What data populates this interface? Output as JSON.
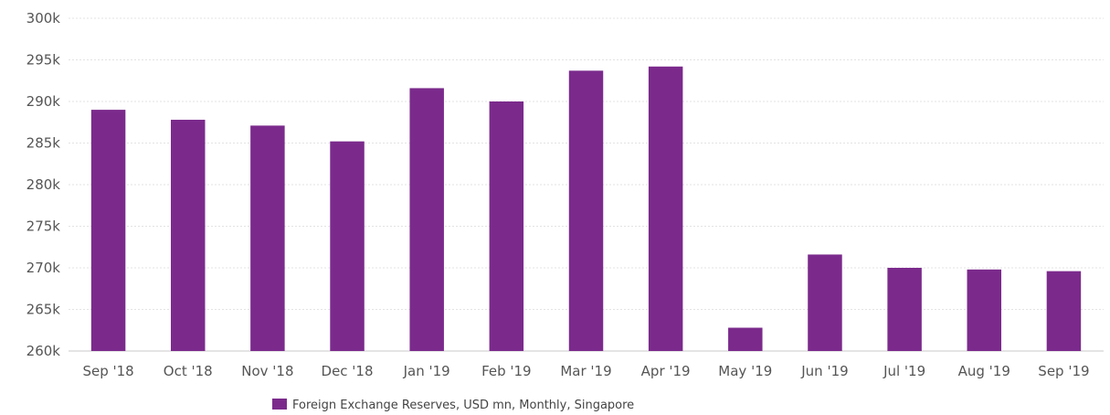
{
  "chart_data": {
    "type": "bar",
    "categories": [
      "Sep '18",
      "Oct '18",
      "Nov '18",
      "Dec '18",
      "Jan '19",
      "Feb '19",
      "Mar '19",
      "Apr '19",
      "May '19",
      "Jun '19",
      "Jul '19",
      "Aug '19",
      "Sep '19"
    ],
    "series": [
      {
        "name": "Foreign Exchange Reserves, USD mn, Monthly, Singapore",
        "values": [
          289000,
          287800,
          287100,
          285200,
          291600,
          290000,
          293700,
          294200,
          262800,
          271600,
          270000,
          269800,
          269600
        ],
        "color": "#7b2a8c"
      }
    ],
    "yticks": [
      "260k",
      "265k",
      "270k",
      "275k",
      "280k",
      "285k",
      "290k",
      "295k",
      "300k"
    ],
    "ylim": [
      260000,
      300000
    ],
    "grid": true,
    "legend_position": "bottom-center"
  }
}
